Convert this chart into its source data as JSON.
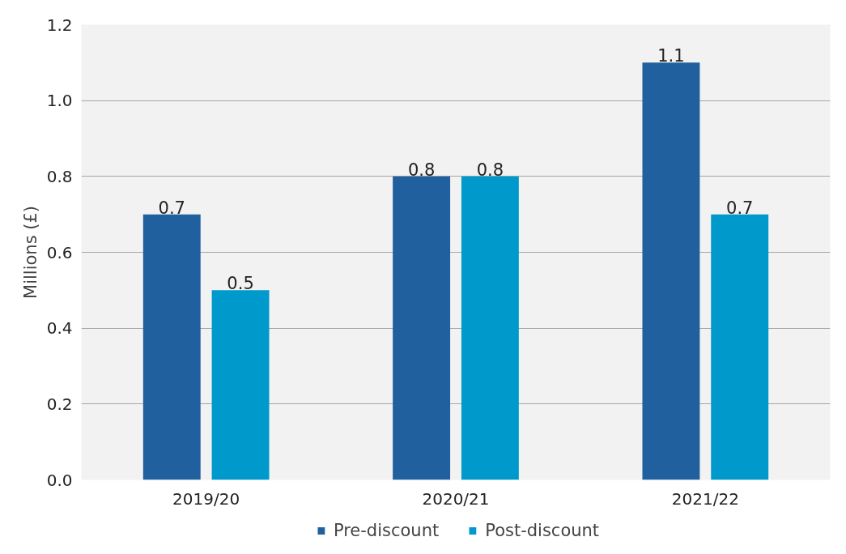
{
  "chart_data": {
    "type": "bar",
    "ylabel": "Millions (£)",
    "categories": [
      "2019/20",
      "2020/21",
      "2021/22"
    ],
    "series": [
      {
        "name": "Pre-discount",
        "color": "#21609e",
        "values": [
          0.7,
          0.8,
          1.1
        ]
      },
      {
        "name": "Post-discount",
        "color": "#0099cc",
        "values": [
          0.5,
          0.8,
          0.7
        ]
      }
    ],
    "ylim": [
      0,
      1.2
    ],
    "yticks": [
      {
        "value": 0,
        "label": "0.0"
      },
      0.2,
      0.4,
      0.6,
      0.8,
      {
        "value": 1,
        "label": "1.0"
      },
      1.2
    ],
    "grid": "y",
    "legend": "bottom",
    "data_labels": true
  }
}
